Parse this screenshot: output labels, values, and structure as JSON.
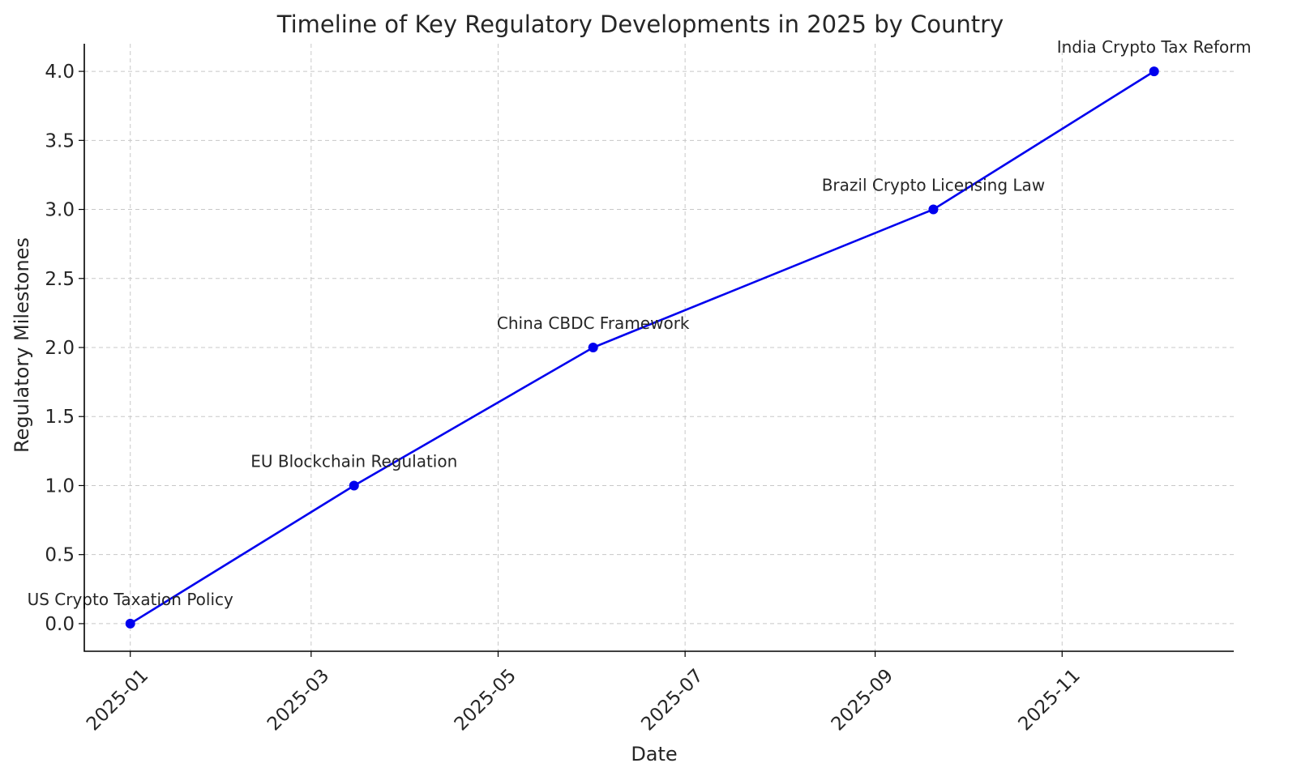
{
  "chart_data": {
    "type": "line",
    "title": "Timeline of Key Regulatory Developments in 2025 by Country",
    "xlabel": "Date",
    "ylabel": "Regulatory Milestones",
    "x_axis_type": "date",
    "xlim": [
      "2024-12-17",
      "2025-12-27"
    ],
    "ylim": [
      -0.2,
      4.2
    ],
    "x_ticks": [
      "2025-01-01",
      "2025-03-01",
      "2025-05-01",
      "2025-07-01",
      "2025-09-01",
      "2025-11-01"
    ],
    "x_tick_labels": [
      "2025-01",
      "2025-03",
      "2025-05",
      "2025-07",
      "2025-09",
      "2025-11"
    ],
    "y_ticks": [
      0.0,
      0.5,
      1.0,
      1.5,
      2.0,
      2.5,
      3.0,
      3.5,
      4.0
    ],
    "y_tick_labels": [
      "0.0",
      "0.5",
      "1.0",
      "1.5",
      "2.0",
      "2.5",
      "3.0",
      "3.5",
      "4.0"
    ],
    "grid": true,
    "series": [
      {
        "color": "#0000ee",
        "marker": "circle",
        "points": [
          {
            "x": "2025-01-01",
            "y": 0,
            "label": "US Crypto Taxation Policy"
          },
          {
            "x": "2025-03-15",
            "y": 1,
            "label": "EU Blockchain Regulation"
          },
          {
            "x": "2025-06-01",
            "y": 2,
            "label": "China CBDC Framework"
          },
          {
            "x": "2025-09-20",
            "y": 3,
            "label": "Brazil Crypto Licensing Law"
          },
          {
            "x": "2025-12-01",
            "y": 4,
            "label": "India Crypto Tax Reform"
          }
        ]
      }
    ]
  }
}
